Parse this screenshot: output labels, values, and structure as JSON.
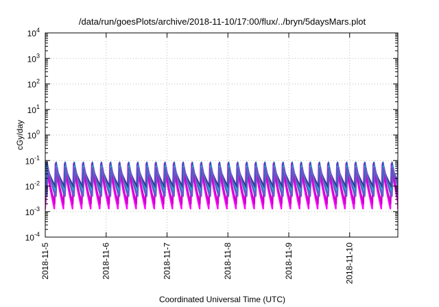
{
  "chart_data": {
    "type": "area",
    "title": "/data/run/goesPlots/archive/2018-11-10/17:00/flux/../bryn/5daysMars.plot",
    "xlabel": "Coordinated Universal Time (UTC)",
    "ylabel": "cGy/day",
    "x_range": [
      "2018-11-05T00:00",
      "2018-11-10T19:00"
    ],
    "x_ticks": [
      "2018-11-5",
      "2018-11-6",
      "2018-11-7",
      "2018-11-8",
      "2018-11-9",
      "2018-11-10"
    ],
    "y_scale": "log",
    "ylim": [
      0.0001,
      10000
    ],
    "y_tick_values": [
      0.0001,
      0.001,
      0.01,
      0.1,
      1,
      10,
      100,
      1000,
      10000
    ],
    "y_tick_mantissa": "10",
    "y_tick_exponents": [
      "-4",
      "-3",
      "-2",
      "-1",
      "0",
      "1",
      "2",
      "3",
      "4"
    ],
    "grid": true,
    "legend": "none",
    "oscillation": {
      "period_hours": 3.58,
      "shape": "sawtooth: sharp rise to peak, gradual decay to trough"
    },
    "series": [
      {
        "color": "#ff00ff",
        "peak": 0.075,
        "trough": 0.0013
      },
      {
        "color": "#cc00cc",
        "peak": 0.07,
        "trough": 0.002
      },
      {
        "color": "#3355bb",
        "peak": 0.085,
        "trough": 0.0045
      },
      {
        "color": "#00cccc",
        "peak": 0.06,
        "trough": 0.0065
      },
      {
        "color": "#2b3f8f",
        "peak": 0.05,
        "trough": 0.009
      },
      {
        "color": "#6a5acd",
        "peak": 0.055,
        "trough": 0.004
      }
    ]
  }
}
